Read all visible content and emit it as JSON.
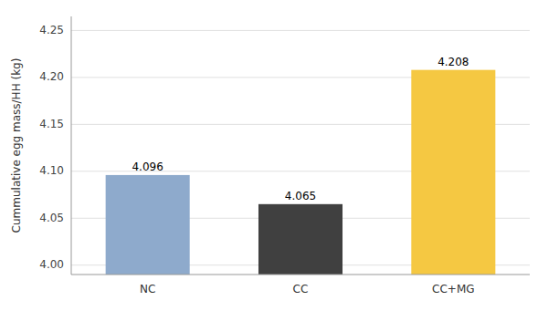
{
  "chart_data": {
    "type": "bar",
    "categories": [
      "NC",
      "CC",
      "CC+MG"
    ],
    "values": [
      4.096,
      4.065,
      4.208
    ],
    "colors": [
      "#8eaacc",
      "#404040",
      "#f5c842"
    ],
    "ylabel": "Cummulative egg mass/HH (kg)",
    "ylim": [
      3.99,
      4.265
    ],
    "yticks": [
      {
        "value": 4,
        "label": "4.00"
      },
      4.05,
      {
        "value": 4.1,
        "label": "4.10"
      },
      4.15,
      {
        "value": 4.2,
        "label": "4.20"
      },
      4.25
    ],
    "grid": true,
    "data_labels": true
  }
}
